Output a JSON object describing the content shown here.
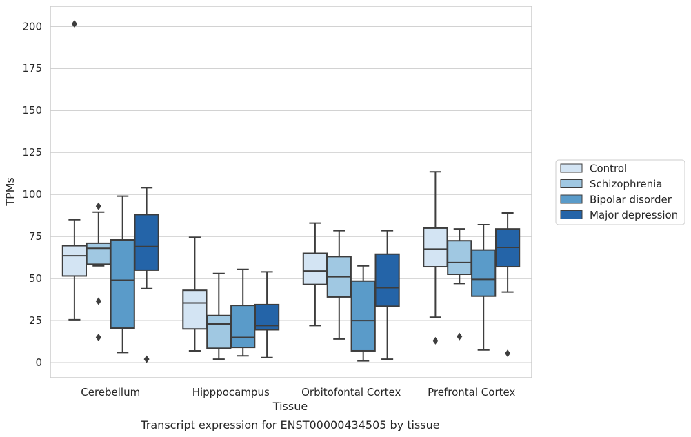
{
  "chart_data": {
    "type": "box",
    "title": "",
    "caption": "Transcript expression for ENST00000434505 by tissue",
    "xlabel": "Tissue",
    "ylabel": "TPMs",
    "ylim": [
      -9,
      212
    ],
    "yticks": [
      0,
      25,
      50,
      75,
      100,
      125,
      150,
      175,
      200
    ],
    "grid": true,
    "legend_position": "right",
    "categories": [
      "Cerebellum",
      "Hipppocampus",
      "Orbitofontal Cortex",
      "Prefrontal Cortex"
    ],
    "series": [
      {
        "name": "Control",
        "color": "#d3e4f3",
        "boxes": [
          {
            "whislo": 25.5,
            "q1": 51.5,
            "med": 63.5,
            "q3": 69.5,
            "whishi": 85,
            "fliers": [
              201.5
            ]
          },
          {
            "whislo": 7,
            "q1": 20,
            "med": 35.5,
            "q3": 43,
            "whishi": 74.5,
            "fliers": []
          },
          {
            "whislo": 22,
            "q1": 46.5,
            "med": 54.5,
            "q3": 65,
            "whishi": 83,
            "fliers": []
          },
          {
            "whislo": 27,
            "q1": 57,
            "med": 67.5,
            "q3": 80,
            "whishi": 113.5,
            "fliers": [
              13
            ]
          }
        ]
      },
      {
        "name": "Schizophrenia",
        "color": "#a0c8e2",
        "boxes": [
          {
            "whislo": 57.5,
            "q1": 58.5,
            "med": 68,
            "q3": 71,
            "whishi": 89.5,
            "fliers": [
              93,
              36.5,
              15
            ]
          },
          {
            "whislo": 2,
            "q1": 8.5,
            "med": 23,
            "q3": 28,
            "whishi": 53,
            "fliers": []
          },
          {
            "whislo": 14,
            "q1": 39,
            "med": 51,
            "q3": 63,
            "whishi": 78.5,
            "fliers": []
          },
          {
            "whislo": 47,
            "q1": 52.5,
            "med": 59.5,
            "q3": 72.5,
            "whishi": 79.5,
            "fliers": [
              15.5
            ]
          }
        ]
      },
      {
        "name": "Bipolar disorder",
        "color": "#5a9bc9",
        "boxes": [
          {
            "whislo": 6,
            "q1": 20.5,
            "med": 49,
            "q3": 73,
            "whishi": 99,
            "fliers": []
          },
          {
            "whislo": 4,
            "q1": 9,
            "med": 15,
            "q3": 34,
            "whishi": 55.5,
            "fliers": []
          },
          {
            "whislo": 1,
            "q1": 7,
            "med": 25,
            "q3": 48.5,
            "whishi": 57.5,
            "fliers": []
          },
          {
            "whislo": 7.5,
            "q1": 39.5,
            "med": 49.5,
            "q3": 67,
            "whishi": 82,
            "fliers": []
          }
        ]
      },
      {
        "name": "Major depression",
        "color": "#2464a8",
        "boxes": [
          {
            "whislo": 44,
            "q1": 55,
            "med": 69,
            "q3": 88,
            "whishi": 104,
            "fliers": [
              2
            ]
          },
          {
            "whislo": 3,
            "q1": 19.5,
            "med": 22,
            "q3": 34.5,
            "whishi": 54,
            "fliers": []
          },
          {
            "whislo": 2,
            "q1": 33.5,
            "med": 44.5,
            "q3": 64.5,
            "whishi": 78.5,
            "fliers": []
          },
          {
            "whislo": 42,
            "q1": 57,
            "med": 68.5,
            "q3": 79.5,
            "whishi": 89,
            "fliers": [
              5.5
            ]
          }
        ]
      }
    ]
  }
}
